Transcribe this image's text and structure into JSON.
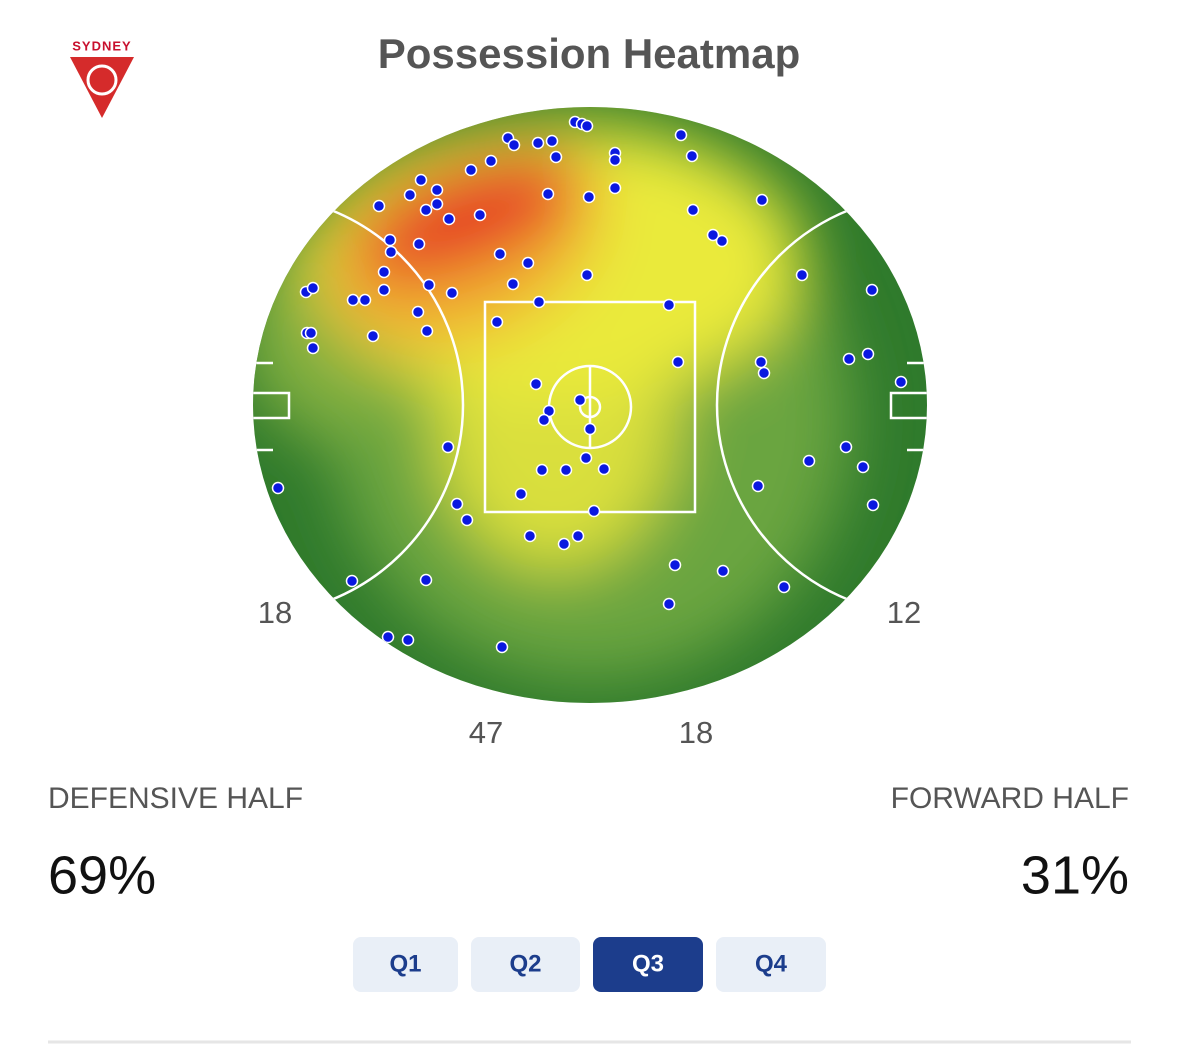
{
  "header": {
    "logo": "SYDNEY",
    "title": "Possession Heatmap"
  },
  "field": {
    "zone_counts": [
      {
        "zone": "defensive-50",
        "count": 18
      },
      {
        "zone": "forward-50",
        "count": 12
      },
      {
        "zone": "defensive-midfield",
        "count": 47
      },
      {
        "zone": "forward-midfield",
        "count": 18
      }
    ]
  },
  "halves": [
    {
      "label": "DEFENSIVE HALF",
      "share": "69%"
    },
    {
      "label": "FORWARD HALF",
      "share": "31%"
    }
  ],
  "tabs": {
    "items": [
      "Q1",
      "Q2",
      "Q3",
      "Q4"
    ],
    "selected": 2
  }
}
